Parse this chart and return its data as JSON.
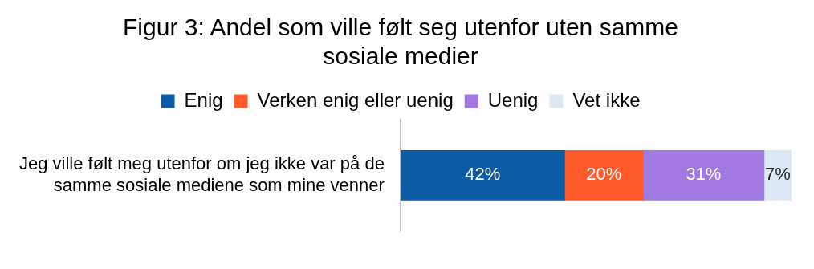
{
  "chart_data": {
    "type": "bar",
    "orientation": "horizontal",
    "stacked": true,
    "title": "Figur 3: Andel som ville følt seg utenfor uten samme sosiale medier",
    "legend": "top",
    "categories": [
      "Jeg ville følt meg utenfor om jeg ikke var på de samme sosiale mediene som mine venner"
    ],
    "series": [
      {
        "name": "Enig",
        "color": "#0c5ba5",
        "values": [
          42
        ],
        "value_labels": [
          "42%"
        ]
      },
      {
        "name": "Verken enig eller uenig",
        "color": "#ff5a2c",
        "values": [
          20
        ],
        "value_labels": [
          "20%"
        ]
      },
      {
        "name": "Uenig",
        "color": "#a07ae0",
        "values": [
          31
        ],
        "value_labels": [
          "31%"
        ]
      },
      {
        "name": "Vet ikke",
        "color": "#dce9f5",
        "values": [
          7
        ],
        "value_labels": [
          "7%"
        ]
      }
    ]
  }
}
